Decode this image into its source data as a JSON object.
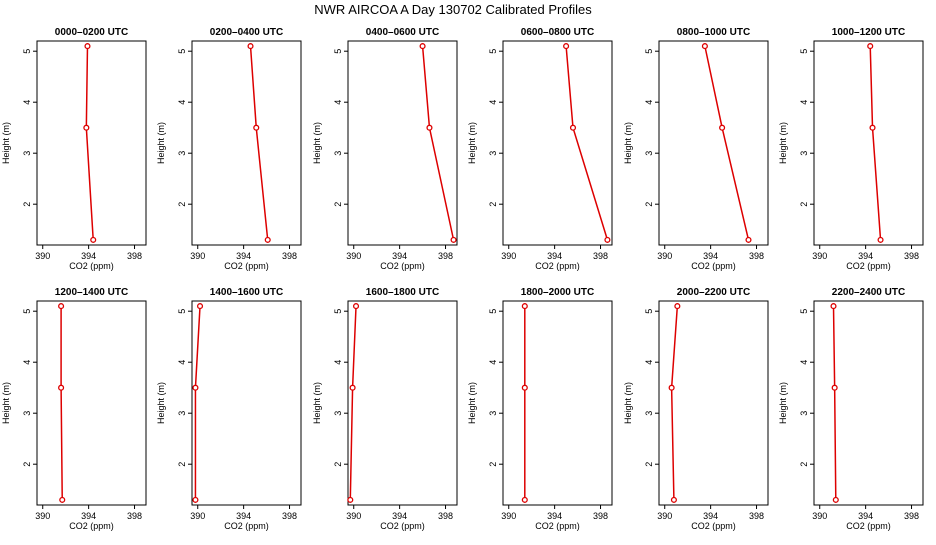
{
  "title": "NWR AIRCOA A  Day 130702  Calibrated Profiles",
  "chart_data": [
    {
      "type": "line",
      "title": "0000–0200 UTC",
      "xlabel": "CO2 (ppm)",
      "ylabel": "Height (m)",
      "xlim": [
        389.5,
        399.0
      ],
      "ylim": [
        1.2,
        5.2
      ],
      "xticks": [
        "390",
        "394",
        "398"
      ],
      "yticks": [
        "2",
        "3",
        "4",
        "5"
      ],
      "series": [
        {
          "color": "#dd0000",
          "points": [
            {
              "x": 394.4,
              "y": 1.3
            },
            {
              "x": 393.8,
              "y": 3.5
            },
            {
              "x": 393.9,
              "y": 5.1
            }
          ]
        }
      ]
    },
    {
      "type": "line",
      "title": "0200–0400 UTC",
      "xlabel": "CO2 (ppm)",
      "ylabel": "Height (m)",
      "xlim": [
        389.5,
        399.0
      ],
      "ylim": [
        1.2,
        5.2
      ],
      "xticks": [
        "390",
        "394",
        "398"
      ],
      "yticks": [
        "2",
        "3",
        "4",
        "5"
      ],
      "series": [
        {
          "color": "#dd0000",
          "points": [
            {
              "x": 396.1,
              "y": 1.3
            },
            {
              "x": 395.1,
              "y": 3.5
            },
            {
              "x": 394.6,
              "y": 5.1
            }
          ]
        }
      ]
    },
    {
      "type": "line",
      "title": "0400–0600 UTC",
      "xlabel": "CO2 (ppm)",
      "ylabel": "Height (m)",
      "xlim": [
        389.5,
        399.0
      ],
      "ylim": [
        1.2,
        5.2
      ],
      "xticks": [
        "390",
        "394",
        "398"
      ],
      "yticks": [
        "2",
        "3",
        "4",
        "5"
      ],
      "series": [
        {
          "color": "#dd0000",
          "points": [
            {
              "x": 398.7,
              "y": 1.3
            },
            {
              "x": 396.6,
              "y": 3.5
            },
            {
              "x": 396.0,
              "y": 5.1
            }
          ]
        }
      ]
    },
    {
      "type": "line",
      "title": "0600–0800 UTC",
      "xlabel": "CO2 (ppm)",
      "ylabel": "Height (m)",
      "xlim": [
        389.5,
        399.0
      ],
      "ylim": [
        1.2,
        5.2
      ],
      "xticks": [
        "390",
        "394",
        "398"
      ],
      "yticks": [
        "2",
        "3",
        "4",
        "5"
      ],
      "series": [
        {
          "color": "#dd0000",
          "points": [
            {
              "x": 398.6,
              "y": 1.3
            },
            {
              "x": 395.6,
              "y": 3.5
            },
            {
              "x": 395.0,
              "y": 5.1
            }
          ]
        }
      ]
    },
    {
      "type": "line",
      "title": "0800–1000 UTC",
      "xlabel": "CO2 (ppm)",
      "ylabel": "Height (m)",
      "xlim": [
        389.5,
        399.0
      ],
      "ylim": [
        1.2,
        5.2
      ],
      "xticks": [
        "390",
        "394",
        "398"
      ],
      "yticks": [
        "2",
        "3",
        "4",
        "5"
      ],
      "series": [
        {
          "color": "#dd0000",
          "points": [
            {
              "x": 397.3,
              "y": 1.3
            },
            {
              "x": 395.0,
              "y": 3.5
            },
            {
              "x": 393.5,
              "y": 5.1
            }
          ]
        }
      ]
    },
    {
      "type": "line",
      "title": "1000–1200 UTC",
      "xlabel": "CO2 (ppm)",
      "ylabel": "Height (m)",
      "xlim": [
        389.5,
        399.0
      ],
      "ylim": [
        1.2,
        5.2
      ],
      "xticks": [
        "390",
        "394",
        "398"
      ],
      "yticks": [
        "2",
        "3",
        "4",
        "5"
      ],
      "series": [
        {
          "color": "#dd0000",
          "points": [
            {
              "x": 395.3,
              "y": 1.3
            },
            {
              "x": 394.6,
              "y": 3.5
            },
            {
              "x": 394.4,
              "y": 5.1
            }
          ]
        }
      ]
    },
    {
      "type": "line",
      "title": "1200–1400 UTC",
      "xlabel": "CO2 (ppm)",
      "ylabel": "Height (m)",
      "xlim": [
        389.5,
        399.0
      ],
      "ylim": [
        1.2,
        5.2
      ],
      "xticks": [
        "390",
        "394",
        "398"
      ],
      "yticks": [
        "2",
        "3",
        "4",
        "5"
      ],
      "series": [
        {
          "color": "#dd0000",
          "points": [
            {
              "x": 391.7,
              "y": 1.3
            },
            {
              "x": 391.6,
              "y": 3.5
            },
            {
              "x": 391.6,
              "y": 5.1
            }
          ]
        }
      ]
    },
    {
      "type": "line",
      "title": "1400–1600 UTC",
      "xlabel": "CO2 (ppm)",
      "ylabel": "Height (m)",
      "xlim": [
        389.5,
        399.0
      ],
      "ylim": [
        1.2,
        5.2
      ],
      "xticks": [
        "390",
        "394",
        "398"
      ],
      "yticks": [
        "2",
        "3",
        "4",
        "5"
      ],
      "series": [
        {
          "color": "#dd0000",
          "points": [
            {
              "x": 389.8,
              "y": 1.3
            },
            {
              "x": 389.8,
              "y": 3.5
            },
            {
              "x": 390.2,
              "y": 5.1
            }
          ]
        }
      ]
    },
    {
      "type": "line",
      "title": "1600–1800 UTC",
      "xlabel": "CO2 (ppm)",
      "ylabel": "Height (m)",
      "xlim": [
        389.5,
        399.0
      ],
      "ylim": [
        1.2,
        5.2
      ],
      "xticks": [
        "390",
        "394",
        "398"
      ],
      "yticks": [
        "2",
        "3",
        "4",
        "5"
      ],
      "series": [
        {
          "color": "#dd0000",
          "points": [
            {
              "x": 389.7,
              "y": 1.3
            },
            {
              "x": 389.9,
              "y": 3.5
            },
            {
              "x": 390.2,
              "y": 5.1
            }
          ]
        }
      ]
    },
    {
      "type": "line",
      "title": "1800–2000 UTC",
      "xlabel": "CO2 (ppm)",
      "ylabel": "Height (m)",
      "xlim": [
        389.5,
        399.0
      ],
      "ylim": [
        1.2,
        5.2
      ],
      "xticks": [
        "390",
        "394",
        "398"
      ],
      "yticks": [
        "2",
        "3",
        "4",
        "5"
      ],
      "series": [
        {
          "color": "#dd0000",
          "points": [
            {
              "x": 391.4,
              "y": 1.3
            },
            {
              "x": 391.4,
              "y": 3.5
            },
            {
              "x": 391.4,
              "y": 5.1
            }
          ]
        }
      ]
    },
    {
      "type": "line",
      "title": "2000–2200 UTC",
      "xlabel": "CO2 (ppm)",
      "ylabel": "Height (m)",
      "xlim": [
        389.5,
        399.0
      ],
      "ylim": [
        1.2,
        5.2
      ],
      "xticks": [
        "390",
        "394",
        "398"
      ],
      "yticks": [
        "2",
        "3",
        "4",
        "5"
      ],
      "series": [
        {
          "color": "#dd0000",
          "points": [
            {
              "x": 390.8,
              "y": 1.3
            },
            {
              "x": 390.6,
              "y": 3.5
            },
            {
              "x": 391.1,
              "y": 5.1
            }
          ]
        }
      ]
    },
    {
      "type": "line",
      "title": "2200–2400 UTC",
      "xlabel": "CO2 (ppm)",
      "ylabel": "Height (m)",
      "xlim": [
        389.5,
        399.0
      ],
      "ylim": [
        1.2,
        5.2
      ],
      "xticks": [
        "390",
        "394",
        "398"
      ],
      "yticks": [
        "2",
        "3",
        "4",
        "5"
      ],
      "series": [
        {
          "color": "#dd0000",
          "points": [
            {
              "x": 391.4,
              "y": 1.3
            },
            {
              "x": 391.3,
              "y": 3.5
            },
            {
              "x": 391.2,
              "y": 5.1
            }
          ]
        }
      ]
    }
  ]
}
